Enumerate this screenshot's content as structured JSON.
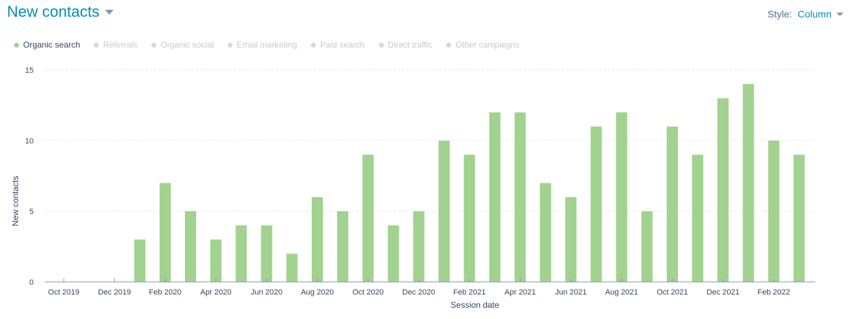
{
  "header": {
    "title": "New contacts"
  },
  "style_control": {
    "label": "Style:",
    "value": "Column"
  },
  "legend": [
    {
      "name": "Organic search",
      "active": true,
      "color": "#a2d28f"
    },
    {
      "name": "Referrals",
      "active": false,
      "color": "#d5d8db"
    },
    {
      "name": "Organic social",
      "active": false,
      "color": "#d5d8db"
    },
    {
      "name": "Email marketing",
      "active": false,
      "color": "#d5d8db"
    },
    {
      "name": "Paid search",
      "active": false,
      "color": "#d5d8db"
    },
    {
      "name": "Direct traffic",
      "active": false,
      "color": "#d5d8db"
    },
    {
      "name": "Other campaigns",
      "active": false,
      "color": "#d5d8db"
    }
  ],
  "chart_data": {
    "type": "bar",
    "xlabel": "Session date",
    "ylabel": "New contacts",
    "ylim": [
      0,
      15
    ],
    "yticks": [
      0,
      5,
      10,
      15
    ],
    "grid": true,
    "bar_color": "#a2d28f",
    "categories": [
      "Oct 2019",
      "Nov 2019",
      "Dec 2019",
      "Jan 2020",
      "Feb 2020",
      "Mar 2020",
      "Apr 2020",
      "May 2020",
      "Jun 2020",
      "Jul 2020",
      "Aug 2020",
      "Sep 2020",
      "Oct 2020",
      "Nov 2020",
      "Dec 2020",
      "Jan 2021",
      "Feb 2021",
      "Mar 2021",
      "Apr 2021",
      "May 2021",
      "Jun 2021",
      "Jul 2021",
      "Aug 2021",
      "Sep 2021",
      "Oct 2021",
      "Nov 2021",
      "Dec 2021",
      "Jan 2022",
      "Feb 2022",
      "Mar 2022"
    ],
    "xtick_labels": [
      "Oct 2019",
      "Dec 2019",
      "Feb 2020",
      "Apr 2020",
      "Jun 2020",
      "Aug 2020",
      "Oct 2020",
      "Dec 2020",
      "Feb 2021",
      "Apr 2021",
      "Jun 2021",
      "Aug 2021",
      "Oct 2021",
      "Dec 2021",
      "Feb 2022"
    ],
    "series": [
      {
        "name": "Organic search",
        "values": [
          0,
          0,
          0,
          3,
          7,
          5,
          3,
          4,
          4,
          2,
          6,
          5,
          9,
          4,
          5,
          10,
          9,
          12,
          12,
          7,
          6,
          11,
          12,
          5,
          11,
          9,
          13,
          14,
          10,
          9
        ]
      }
    ]
  }
}
